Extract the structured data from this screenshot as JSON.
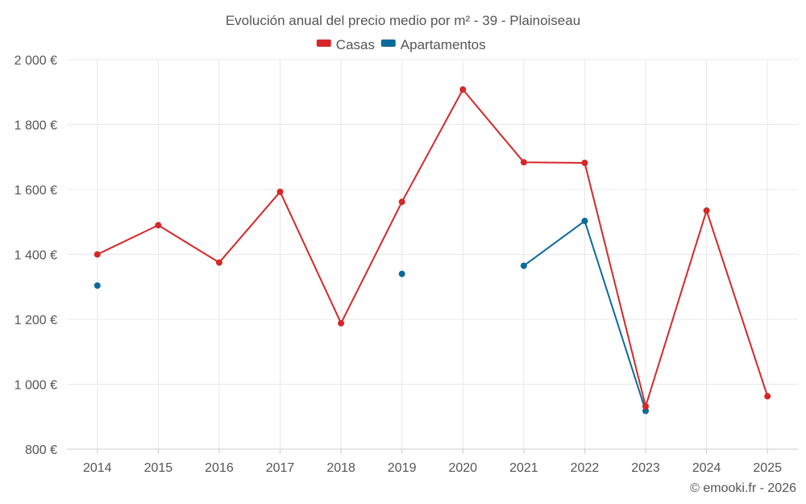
{
  "chart_data": {
    "type": "line",
    "title": "Evolución anual del precio medio por m² - 39 - Plainoiseau",
    "categories": [
      "2014",
      "2015",
      "2016",
      "2017",
      "2018",
      "2019",
      "2020",
      "2021",
      "2022",
      "2023",
      "2024",
      "2025"
    ],
    "series": [
      {
        "name": "Casas",
        "color": "#d62728",
        "values": [
          1400,
          1490,
          1375,
          1593,
          1188,
          1562,
          1908,
          1684,
          1682,
          932,
          1535,
          963
        ]
      },
      {
        "name": "Apartamentos",
        "color": "#0c6a9b",
        "values": [
          1304,
          null,
          null,
          null,
          null,
          1340,
          null,
          1365,
          1503,
          918,
          null,
          null
        ]
      }
    ],
    "ylim": [
      800,
      2000
    ],
    "yticks": [
      800,
      1000,
      1200,
      1400,
      1600,
      1800,
      2000
    ],
    "ytick_labels": [
      "800 €",
      "1 000 €",
      "1 200 €",
      "1 400 €",
      "1 600 €",
      "1 800 €",
      "2 000 €"
    ],
    "xlabel": "",
    "ylabel": "",
    "grid": true,
    "legend_position": "top-center"
  },
  "credit": "© emooki.fr - 2026"
}
